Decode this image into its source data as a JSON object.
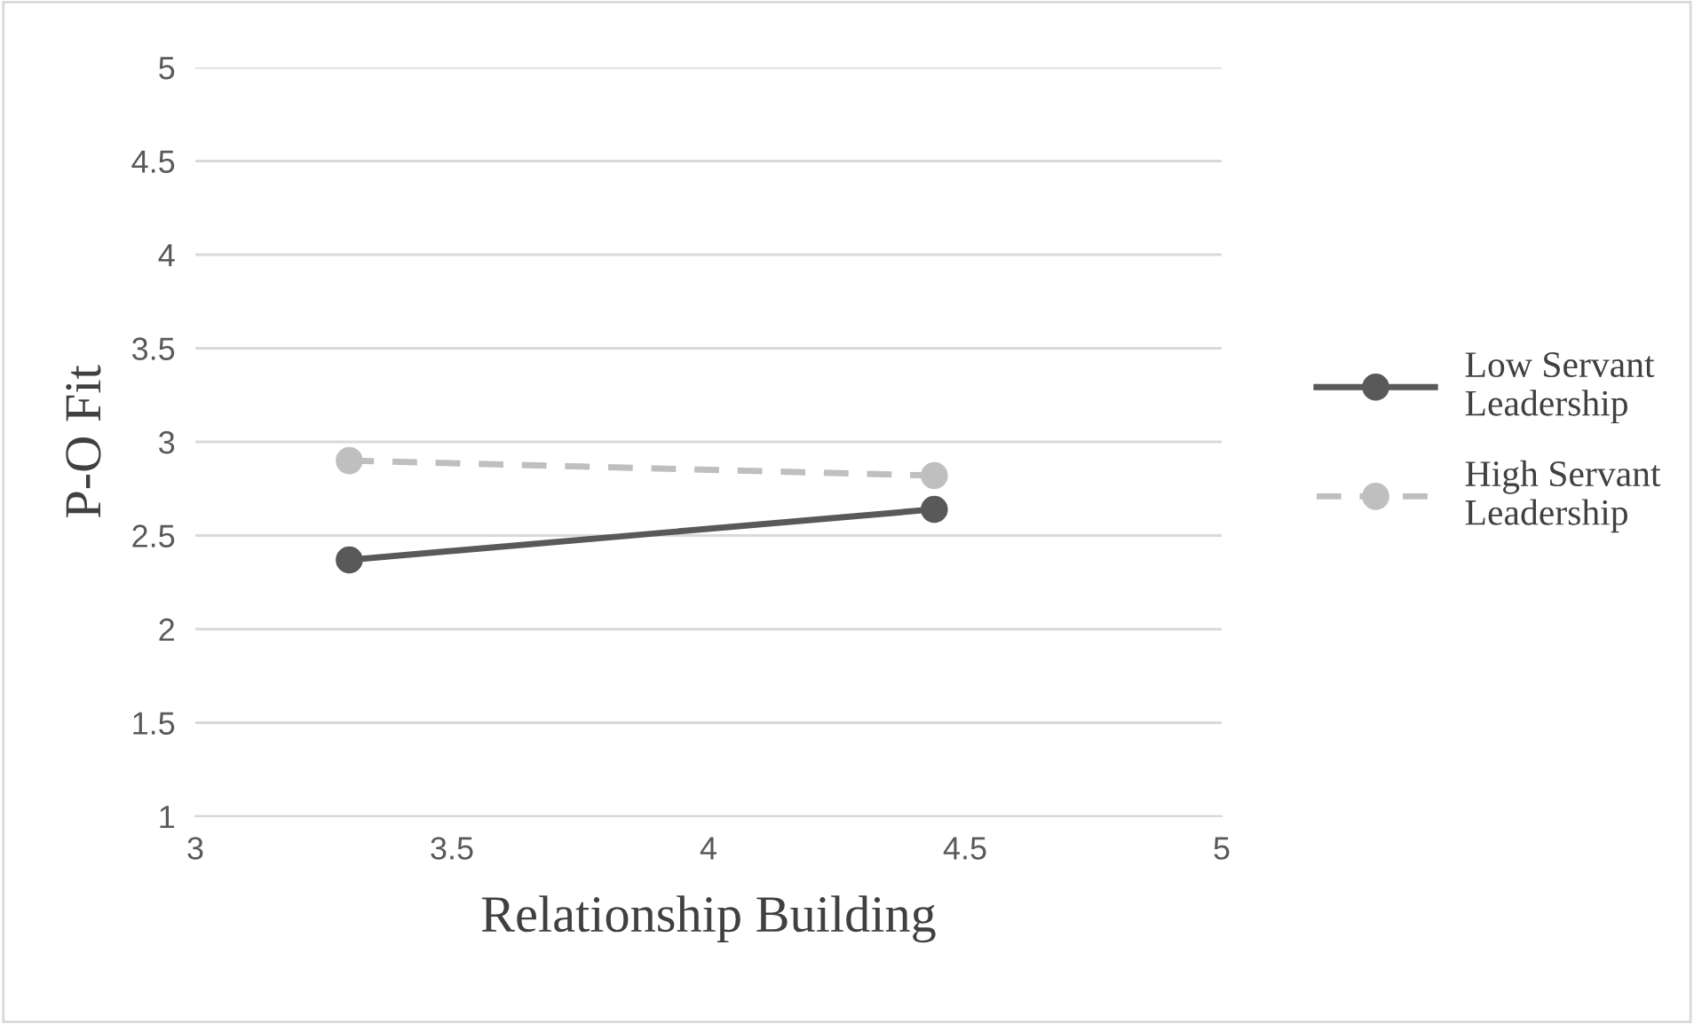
{
  "chart_data": {
    "type": "line",
    "xlabel": "Relationship Building",
    "ylabel": "P-O Fit",
    "xlim": [
      3,
      5
    ],
    "xticks": [
      3,
      3.5,
      4,
      4.5,
      5
    ],
    "ylim": [
      1,
      5
    ],
    "yticks": [
      1,
      1.5,
      2,
      2.5,
      3,
      3.5,
      4,
      4.5,
      5
    ],
    "x": [
      3.3,
      4.44
    ],
    "grid": "y",
    "legend": "right",
    "marker": "circle",
    "series": [
      {
        "name": "Low Servant\nLeadership",
        "color": "#595959",
        "values": [
          2.37,
          2.64
        ],
        "line_style": "solid"
      },
      {
        "name": "High Servant\nLeadership",
        "color": "#bfbfbf",
        "values": [
          2.9,
          2.82
        ],
        "line_style": "dashed"
      }
    ]
  }
}
